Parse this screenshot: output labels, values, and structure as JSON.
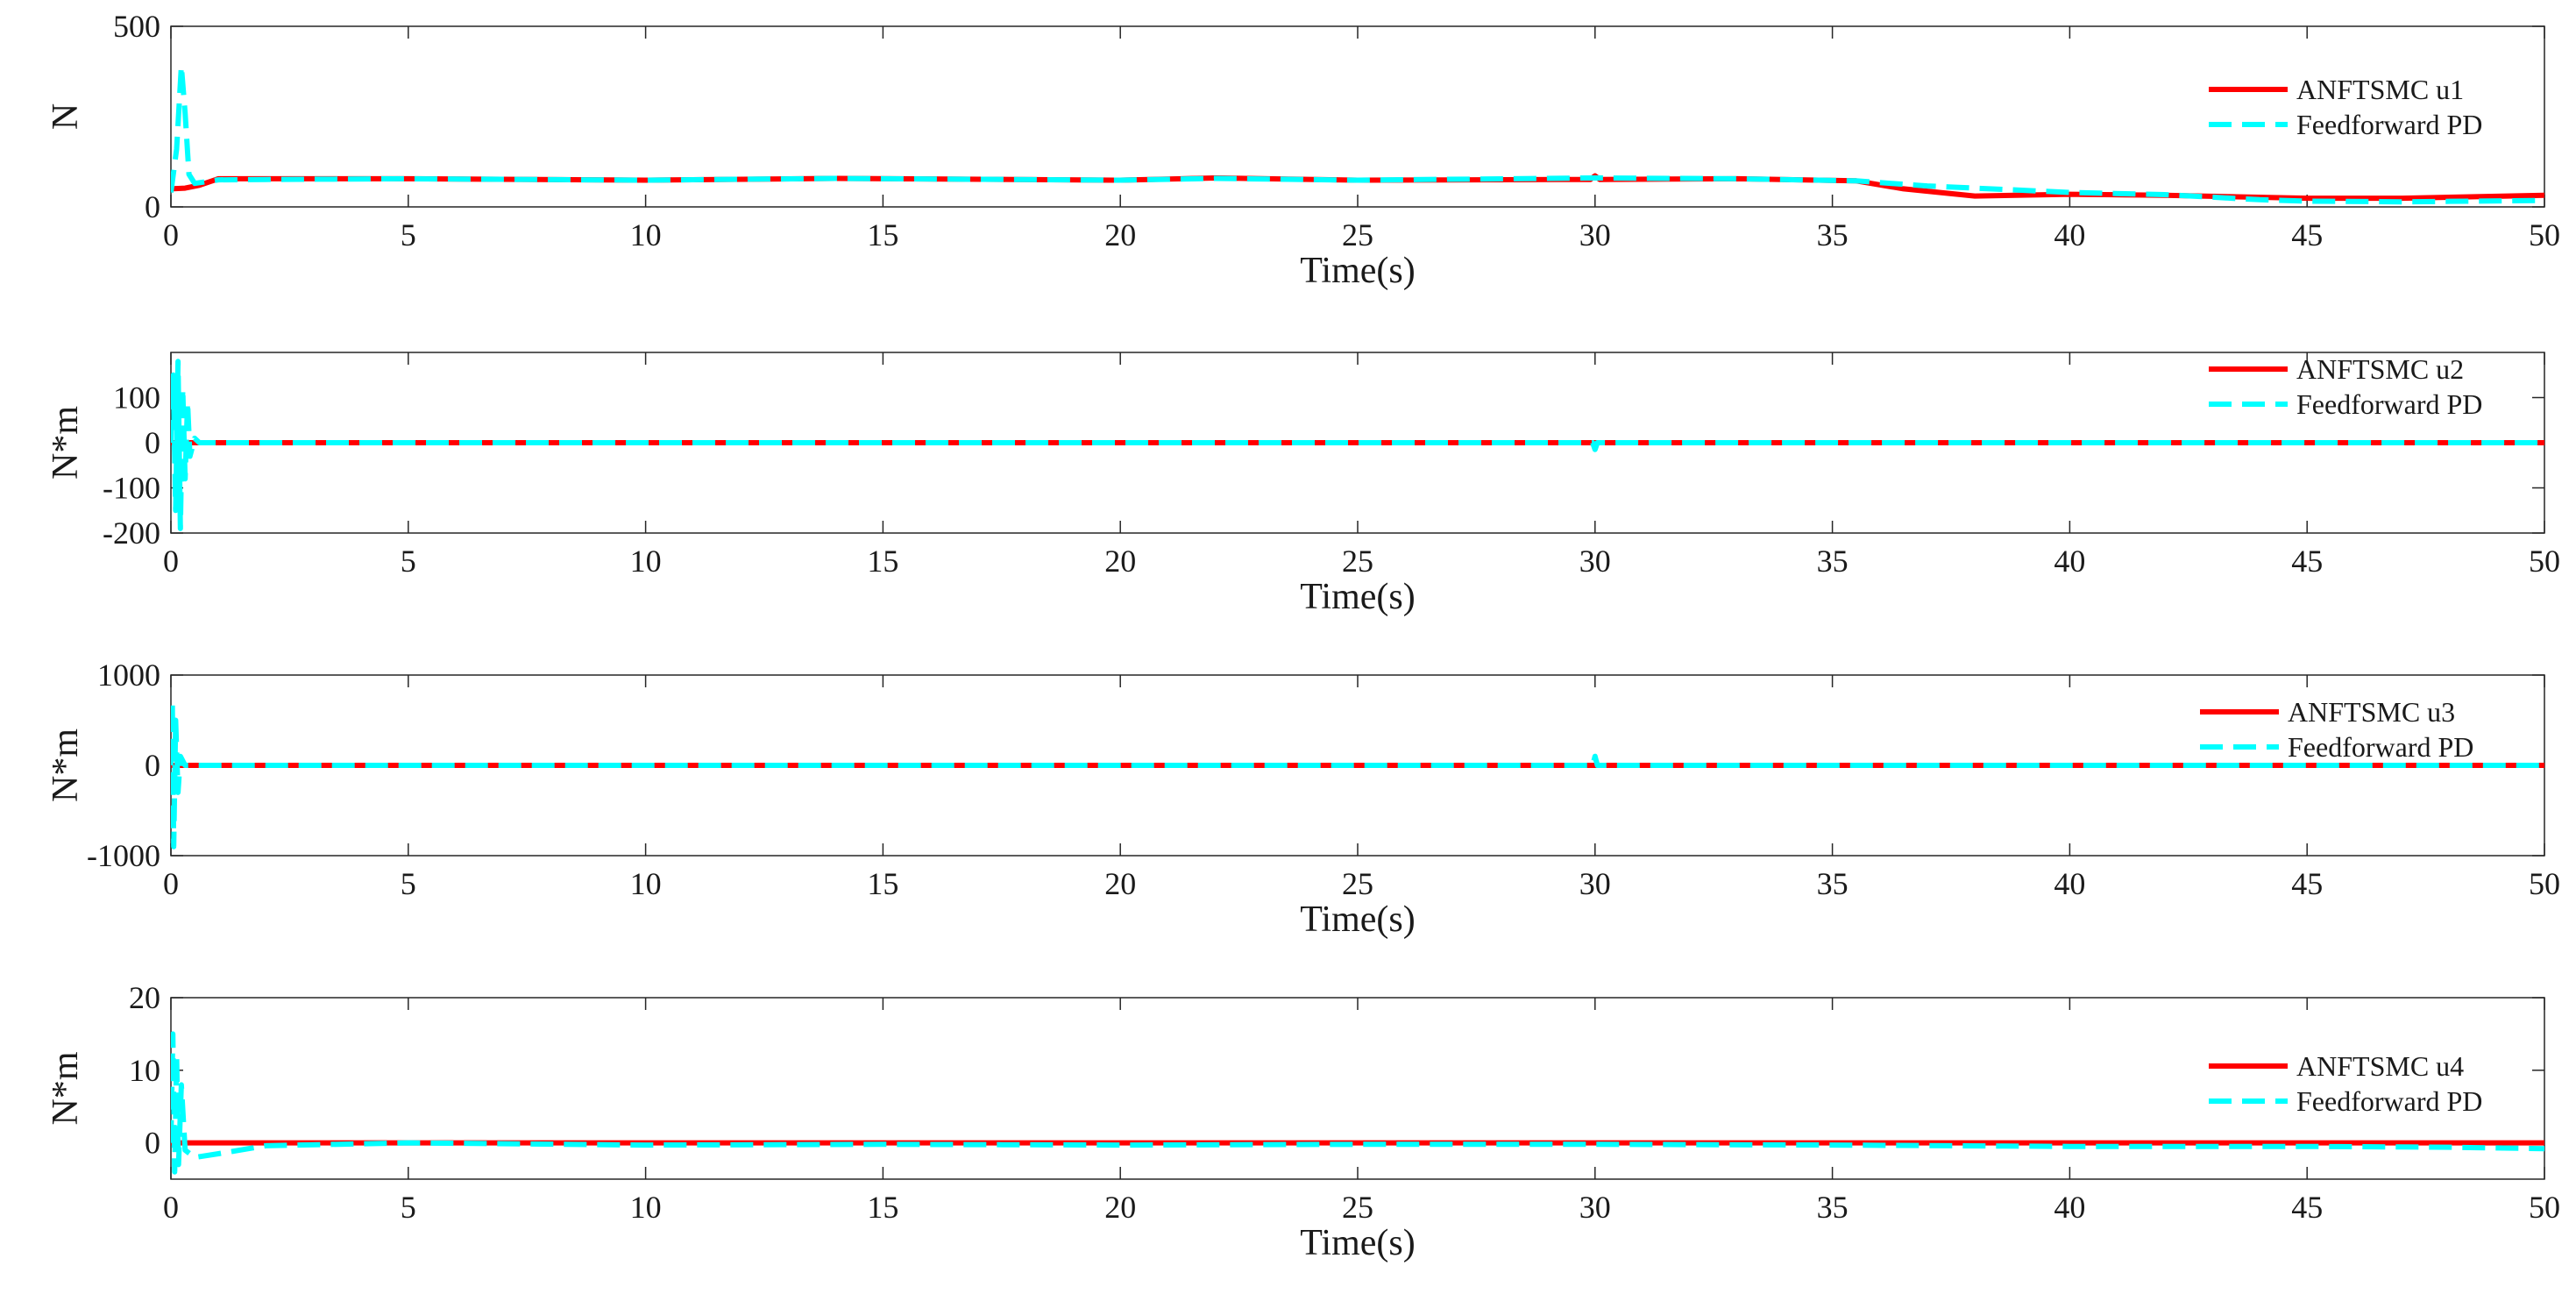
{
  "chart_data": [
    {
      "type": "line",
      "title": "",
      "xlabel": "Time(s)",
      "ylabel": "N",
      "xlim": [
        0,
        50
      ],
      "ylim": [
        0,
        500
      ],
      "xticks": [
        0,
        5,
        10,
        15,
        20,
        25,
        30,
        35,
        40,
        45,
        50
      ],
      "yticks": [
        0,
        500
      ],
      "legend_position": "top-right",
      "grid": false,
      "series": [
        {
          "name": "ANFTSMC u1",
          "color": "#ff0000",
          "style": "solid",
          "x": [
            0,
            0.3,
            0.6,
            1,
            2,
            5,
            10,
            14,
            20,
            22,
            25,
            29.9,
            30,
            30.1,
            33,
            35.5,
            36.5,
            38,
            40,
            42,
            45,
            47,
            50
          ],
          "y": [
            50,
            52,
            60,
            78,
            78,
            78,
            74,
            79,
            74,
            80,
            74,
            76,
            86,
            76,
            78,
            72,
            50,
            30,
            35,
            32,
            24,
            24,
            32
          ]
        },
        {
          "name": "Feedforward PD",
          "color": "#00ffff",
          "style": "dashed",
          "x": [
            0,
            0.12,
            0.22,
            0.3,
            0.38,
            0.5,
            1,
            2,
            5,
            10,
            14,
            20,
            22,
            25,
            30,
            33,
            35.5,
            37,
            40,
            42,
            44,
            45,
            47,
            50
          ],
          "y": [
            40,
            160,
            390,
            260,
            90,
            65,
            75,
            76,
            78,
            74,
            79,
            74,
            79,
            74,
            80,
            78,
            72,
            58,
            40,
            34,
            20,
            16,
            14,
            18
          ]
        }
      ]
    },
    {
      "type": "line",
      "title": "",
      "xlabel": "Time(s)",
      "ylabel": "N*m",
      "xlim": [
        0,
        50
      ],
      "ylim": [
        -200,
        200
      ],
      "xticks": [
        0,
        5,
        10,
        15,
        20,
        25,
        30,
        35,
        40,
        45,
        50
      ],
      "yticks": [
        -200,
        -100,
        0,
        100
      ],
      "legend_position": "top-right",
      "grid": false,
      "series": [
        {
          "name": "ANFTSMC u2",
          "color": "#ff0000",
          "style": "solid",
          "x": [
            0,
            50
          ],
          "y": [
            0,
            0
          ]
        },
        {
          "name": "Feedforward PD",
          "color": "#00ffff",
          "style": "dashed",
          "x": [
            0,
            0.05,
            0.1,
            0.15,
            0.2,
            0.25,
            0.3,
            0.35,
            0.4,
            0.5,
            0.6,
            1,
            29.95,
            30,
            30.05,
            50
          ],
          "y": [
            0,
            150,
            -150,
            180,
            -190,
            120,
            -80,
            90,
            -30,
            10,
            0,
            0,
            0,
            -15,
            0,
            0
          ]
        }
      ]
    },
    {
      "type": "line",
      "title": "",
      "xlabel": "Time(s)",
      "ylabel": "N*m",
      "xlim": [
        0,
        50
      ],
      "ylim": [
        -1000,
        1000
      ],
      "xticks": [
        0,
        5,
        10,
        15,
        20,
        25,
        30,
        35,
        40,
        45,
        50
      ],
      "yticks": [
        -1000,
        0,
        1000
      ],
      "legend_position": "top-right",
      "grid": false,
      "series": [
        {
          "name": "ANFTSMC u3",
          "color": "#ff0000",
          "style": "solid",
          "x": [
            0,
            50
          ],
          "y": [
            0,
            0
          ]
        },
        {
          "name": "Feedforward PD",
          "color": "#00ffff",
          "style": "dashed",
          "x": [
            0,
            0.03,
            0.06,
            0.1,
            0.15,
            0.2,
            0.3,
            1,
            29.95,
            30,
            30.05,
            50
          ],
          "y": [
            0,
            700,
            -900,
            500,
            -300,
            100,
            0,
            0,
            0,
            100,
            0,
            0
          ]
        }
      ]
    },
    {
      "type": "line",
      "title": "",
      "xlabel": "Time(s)",
      "ylabel": "N*m",
      "xlim": [
        0,
        50
      ],
      "ylim": [
        -5,
        20
      ],
      "xticks": [
        0,
        5,
        10,
        15,
        20,
        25,
        30,
        35,
        40,
        45,
        50
      ],
      "yticks": [
        0,
        10,
        20
      ],
      "legend_position": "top-right",
      "grid": false,
      "series": [
        {
          "name": "ANFTSMC u4",
          "color": "#ff0000",
          "style": "solid",
          "x": [
            0,
            50
          ],
          "y": [
            0,
            0
          ]
        },
        {
          "name": "Feedforward PD",
          "color": "#00ffff",
          "style": "dashed",
          "x": [
            0,
            0.04,
            0.08,
            0.12,
            0.16,
            0.22,
            0.3,
            0.5,
            1,
            2,
            5,
            10,
            15,
            20,
            25,
            30,
            35,
            40,
            45,
            48,
            50
          ],
          "y": [
            0,
            15,
            -4,
            12,
            -3,
            8,
            -1,
            -2,
            -1.5,
            -0.4,
            0,
            -0.3,
            -0.2,
            -0.3,
            -0.2,
            -0.2,
            -0.3,
            -0.5,
            -0.5,
            -0.6,
            -0.8
          ]
        }
      ]
    }
  ]
}
